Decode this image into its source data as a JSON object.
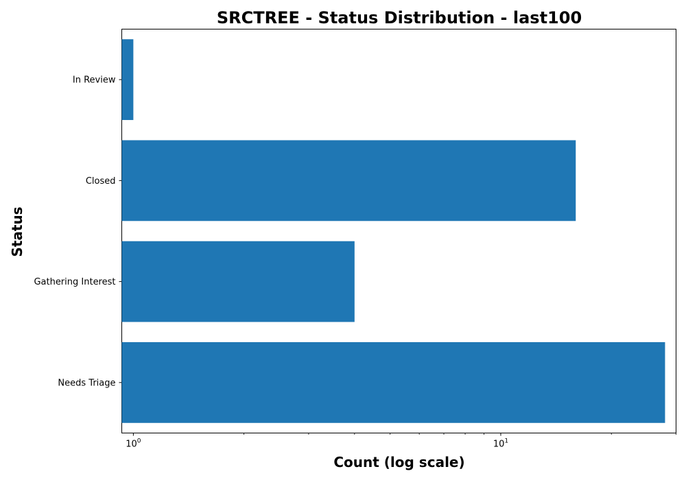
{
  "chart_data": {
    "type": "bar",
    "orientation": "horizontal",
    "title": "SRCTREE - Status Distribution - last100",
    "xlabel": "Count (log scale)",
    "ylabel": "Status",
    "xscale": "log",
    "xlim": [
      0.93,
      30
    ],
    "categories": [
      "In Review",
      "Closed",
      "Gathering Interest",
      "Needs Triage"
    ],
    "values": [
      1,
      16,
      4,
      28
    ],
    "bar_color": "#1f77b4",
    "x_major_ticks": [
      {
        "value": 1,
        "base": "10",
        "exp": "0"
      },
      {
        "value": 10,
        "base": "10",
        "exp": "1"
      }
    ],
    "x_minor_ticks": [
      2,
      3,
      4,
      5,
      6,
      7,
      8,
      9,
      20,
      30
    ],
    "grid": false,
    "legend": "none"
  }
}
